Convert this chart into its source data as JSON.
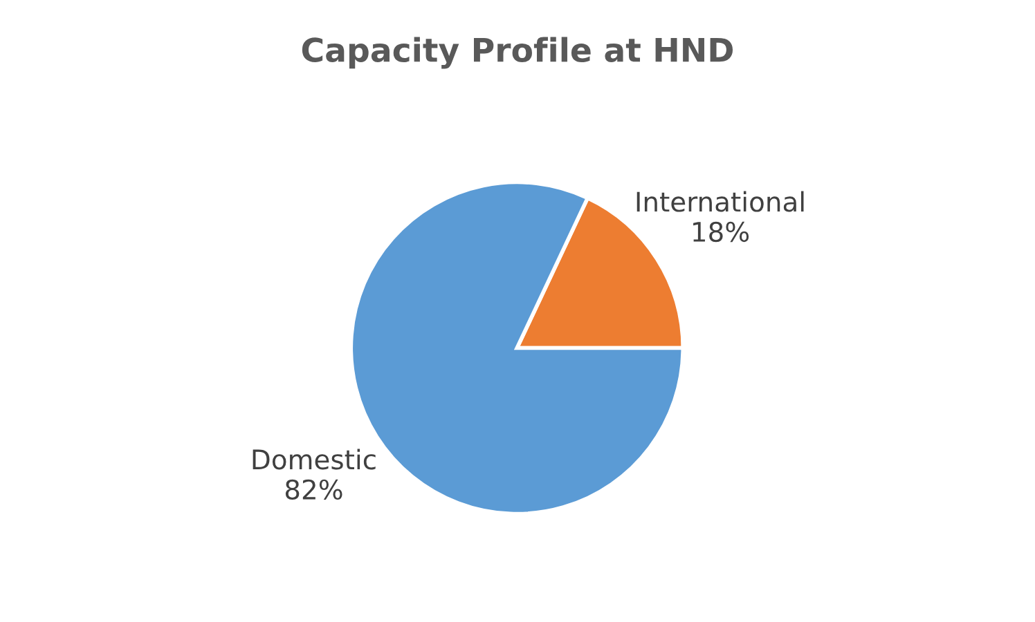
{
  "chart_data": {
    "type": "pie",
    "title": "Capacity Profile at HND",
    "categories": [
      "International",
      "Domestic"
    ],
    "values": [
      18,
      82
    ],
    "value_labels": [
      "18%",
      "82%"
    ],
    "colors": [
      "#ed7d31",
      "#5b9bd5"
    ],
    "legend": false
  }
}
